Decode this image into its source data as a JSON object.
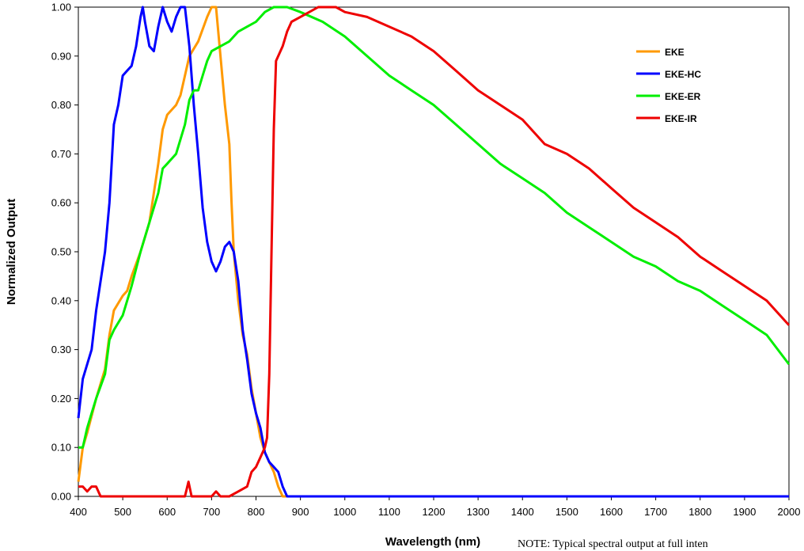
{
  "chart_data": {
    "type": "line",
    "title": "",
    "xlabel": "Wavelength (nm)",
    "ylabel": "Normalized Output",
    "xlim": [
      400,
      2000
    ],
    "ylim": [
      0,
      1.0
    ],
    "x_ticks": [
      "400",
      "500",
      "600",
      "700",
      "800",
      "900",
      "1000",
      "1100",
      "1200",
      "1300",
      "1400",
      "1500",
      "1600",
      "1700",
      "1800",
      "1900",
      "2000"
    ],
    "y_ticks": [
      "0.00",
      "0.10",
      "0.20",
      "0.30",
      "0.40",
      "0.50",
      "0.60",
      "0.70",
      "0.80",
      "0.90",
      "1.00"
    ],
    "grid": false,
    "legend_position": "top-right",
    "note": "NOTE: Typical spectral output at full inten",
    "series": [
      {
        "name": "EKE",
        "color": "#FF9900",
        "points": [
          [
            400,
            0.03
          ],
          [
            410,
            0.1
          ],
          [
            420,
            0.13
          ],
          [
            440,
            0.2
          ],
          [
            460,
            0.26
          ],
          [
            470,
            0.33
          ],
          [
            480,
            0.38
          ],
          [
            500,
            0.41
          ],
          [
            510,
            0.42
          ],
          [
            520,
            0.45
          ],
          [
            540,
            0.5
          ],
          [
            560,
            0.56
          ],
          [
            580,
            0.68
          ],
          [
            590,
            0.75
          ],
          [
            600,
            0.78
          ],
          [
            620,
            0.8
          ],
          [
            630,
            0.82
          ],
          [
            640,
            0.86
          ],
          [
            650,
            0.9
          ],
          [
            670,
            0.93
          ],
          [
            690,
            0.98
          ],
          [
            700,
            1.0
          ],
          [
            710,
            1.0
          ],
          [
            720,
            0.9
          ],
          [
            730,
            0.8
          ],
          [
            740,
            0.72
          ],
          [
            745,
            0.6
          ],
          [
            750,
            0.5
          ],
          [
            760,
            0.4
          ],
          [
            770,
            0.33
          ],
          [
            780,
            0.29
          ],
          [
            790,
            0.22
          ],
          [
            800,
            0.17
          ],
          [
            810,
            0.12
          ],
          [
            820,
            0.09
          ],
          [
            830,
            0.07
          ],
          [
            840,
            0.05
          ],
          [
            850,
            0.02
          ],
          [
            860,
            0.0
          ],
          [
            2000,
            0.0
          ]
        ]
      },
      {
        "name": "EKE-HC",
        "color": "#0000FF",
        "points": [
          [
            400,
            0.16
          ],
          [
            410,
            0.24
          ],
          [
            420,
            0.27
          ],
          [
            430,
            0.3
          ],
          [
            440,
            0.38
          ],
          [
            450,
            0.44
          ],
          [
            460,
            0.5
          ],
          [
            470,
            0.6
          ],
          [
            480,
            0.76
          ],
          [
            490,
            0.8
          ],
          [
            500,
            0.86
          ],
          [
            510,
            0.87
          ],
          [
            520,
            0.88
          ],
          [
            530,
            0.92
          ],
          [
            540,
            0.98
          ],
          [
            545,
            1.0
          ],
          [
            550,
            0.97
          ],
          [
            560,
            0.92
          ],
          [
            570,
            0.91
          ],
          [
            580,
            0.96
          ],
          [
            590,
            1.0
          ],
          [
            600,
            0.97
          ],
          [
            610,
            0.95
          ],
          [
            620,
            0.98
          ],
          [
            630,
            1.0
          ],
          [
            640,
            1.0
          ],
          [
            650,
            0.92
          ],
          [
            660,
            0.8
          ],
          [
            670,
            0.7
          ],
          [
            680,
            0.59
          ],
          [
            690,
            0.52
          ],
          [
            700,
            0.48
          ],
          [
            710,
            0.46
          ],
          [
            720,
            0.48
          ],
          [
            730,
            0.51
          ],
          [
            740,
            0.52
          ],
          [
            750,
            0.5
          ],
          [
            760,
            0.44
          ],
          [
            770,
            0.34
          ],
          [
            780,
            0.28
          ],
          [
            790,
            0.21
          ],
          [
            800,
            0.17
          ],
          [
            810,
            0.14
          ],
          [
            820,
            0.09
          ],
          [
            830,
            0.07
          ],
          [
            840,
            0.06
          ],
          [
            850,
            0.05
          ],
          [
            860,
            0.02
          ],
          [
            870,
            0.0
          ],
          [
            2000,
            0.0
          ]
        ]
      },
      {
        "name": "EKE-ER",
        "color": "#00EE00",
        "points": [
          [
            400,
            0.1
          ],
          [
            410,
            0.1
          ],
          [
            420,
            0.14
          ],
          [
            430,
            0.17
          ],
          [
            440,
            0.2
          ],
          [
            460,
            0.25
          ],
          [
            470,
            0.32
          ],
          [
            480,
            0.34
          ],
          [
            500,
            0.37
          ],
          [
            520,
            0.43
          ],
          [
            540,
            0.5
          ],
          [
            560,
            0.56
          ],
          [
            580,
            0.62
          ],
          [
            590,
            0.67
          ],
          [
            600,
            0.68
          ],
          [
            620,
            0.7
          ],
          [
            640,
            0.76
          ],
          [
            650,
            0.81
          ],
          [
            660,
            0.83
          ],
          [
            670,
            0.83
          ],
          [
            680,
            0.86
          ],
          [
            690,
            0.89
          ],
          [
            700,
            0.91
          ],
          [
            720,
            0.92
          ],
          [
            740,
            0.93
          ],
          [
            760,
            0.95
          ],
          [
            780,
            0.96
          ],
          [
            800,
            0.97
          ],
          [
            820,
            0.99
          ],
          [
            840,
            1.0
          ],
          [
            870,
            1.0
          ],
          [
            900,
            0.99
          ],
          [
            950,
            0.97
          ],
          [
            1000,
            0.94
          ],
          [
            1050,
            0.9
          ],
          [
            1100,
            0.86
          ],
          [
            1150,
            0.83
          ],
          [
            1200,
            0.8
          ],
          [
            1250,
            0.76
          ],
          [
            1300,
            0.72
          ],
          [
            1350,
            0.68
          ],
          [
            1400,
            0.65
          ],
          [
            1450,
            0.62
          ],
          [
            1500,
            0.58
          ],
          [
            1550,
            0.55
          ],
          [
            1600,
            0.52
          ],
          [
            1650,
            0.49
          ],
          [
            1700,
            0.47
          ],
          [
            1750,
            0.44
          ],
          [
            1800,
            0.42
          ],
          [
            1850,
            0.39
          ],
          [
            1900,
            0.36
          ],
          [
            1950,
            0.33
          ],
          [
            2000,
            0.27
          ]
        ]
      },
      {
        "name": "EKE-IR",
        "color": "#EE0000",
        "points": [
          [
            400,
            0.02
          ],
          [
            410,
            0.02
          ],
          [
            420,
            0.01
          ],
          [
            430,
            0.02
          ],
          [
            440,
            0.02
          ],
          [
            450,
            0.0
          ],
          [
            640,
            0.0
          ],
          [
            648,
            0.03
          ],
          [
            655,
            0.0
          ],
          [
            700,
            0.0
          ],
          [
            710,
            0.01
          ],
          [
            720,
            0.0
          ],
          [
            740,
            0.0
          ],
          [
            760,
            0.01
          ],
          [
            780,
            0.02
          ],
          [
            790,
            0.05
          ],
          [
            800,
            0.06
          ],
          [
            810,
            0.08
          ],
          [
            820,
            0.1
          ],
          [
            825,
            0.12
          ],
          [
            830,
            0.25
          ],
          [
            835,
            0.5
          ],
          [
            840,
            0.75
          ],
          [
            845,
            0.89
          ],
          [
            860,
            0.92
          ],
          [
            870,
            0.95
          ],
          [
            880,
            0.97
          ],
          [
            900,
            0.98
          ],
          [
            920,
            0.99
          ],
          [
            940,
            1.0
          ],
          [
            980,
            1.0
          ],
          [
            1000,
            0.99
          ],
          [
            1050,
            0.98
          ],
          [
            1100,
            0.96
          ],
          [
            1150,
            0.94
          ],
          [
            1200,
            0.91
          ],
          [
            1250,
            0.87
          ],
          [
            1300,
            0.83
          ],
          [
            1350,
            0.8
          ],
          [
            1400,
            0.77
          ],
          [
            1450,
            0.72
          ],
          [
            1500,
            0.7
          ],
          [
            1550,
            0.67
          ],
          [
            1600,
            0.63
          ],
          [
            1650,
            0.59
          ],
          [
            1700,
            0.56
          ],
          [
            1750,
            0.53
          ],
          [
            1800,
            0.49
          ],
          [
            1850,
            0.46
          ],
          [
            1900,
            0.43
          ],
          [
            1950,
            0.4
          ],
          [
            2000,
            0.35
          ]
        ]
      }
    ]
  }
}
